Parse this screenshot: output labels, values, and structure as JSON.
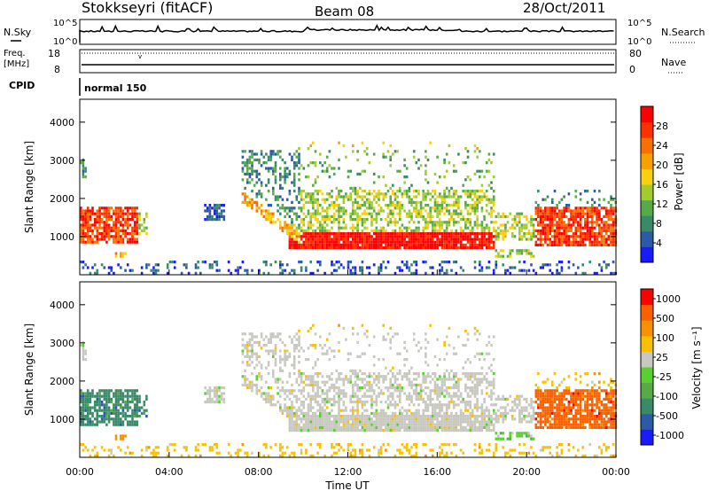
{
  "header": {
    "station": "Stokkseyri (fitACF)",
    "beam": "Beam 08",
    "date": "28/Oct/2011"
  },
  "noise_panel": {
    "left_label": "N.Sky",
    "right_label": "N.Search",
    "ticks": [
      "10^5",
      "10^0"
    ]
  },
  "freq_panel": {
    "left_label_1": "Freq.",
    "left_label_2": "[MHz]",
    "left_ticks": [
      "18",
      "8"
    ],
    "right_label": "Nave",
    "right_ticks": [
      "80",
      "0"
    ]
  },
  "cpid": {
    "label": "CPID",
    "value": "normal 150"
  },
  "chart_data": [
    {
      "type": "heatmap",
      "name": "power",
      "ylabel": "Slant Range [km]",
      "y_ticks": [
        "1000",
        "2000",
        "3000",
        "4000"
      ],
      "ylim": [
        0,
        4600
      ],
      "xlim": [
        0,
        24
      ],
      "colorbar": {
        "label": "Power [dB]",
        "ticks": [
          "4",
          "8",
          "12",
          "16",
          "20",
          "24",
          "28"
        ],
        "colors": [
          "#1a1aff",
          "#2a5aa8",
          "#3a8a68",
          "#58aa48",
          "#a0cc30",
          "#f8d010",
          "#f8a000",
          "#f87000",
          "#ff3000",
          "#ff0000"
        ]
      }
    },
    {
      "type": "heatmap",
      "name": "velocity",
      "ylabel": "Slant Range [km]",
      "y_ticks": [
        "1000",
        "2000",
        "3000",
        "4000"
      ],
      "ylim": [
        0,
        4600
      ],
      "xlim": [
        0,
        24
      ],
      "colorbar": {
        "label": "Velocity [m s⁻¹]",
        "ticks": [
          "1000",
          "500",
          "100",
          "25",
          "-25",
          "-100",
          "-500",
          "-1000"
        ],
        "colors": [
          "#1a1aff",
          "#2a5aa8",
          "#3a8a68",
          "#58aa48",
          "#58d030",
          "#c8c8c0",
          "#f8c000",
          "#f89000",
          "#f86000",
          "#ff0000"
        ]
      },
      "x_ticks": [
        "00:00",
        "04:00",
        "08:00",
        "12:00",
        "16:00",
        "20:00",
        "00:00"
      ],
      "xlabel": "Time UT"
    }
  ]
}
